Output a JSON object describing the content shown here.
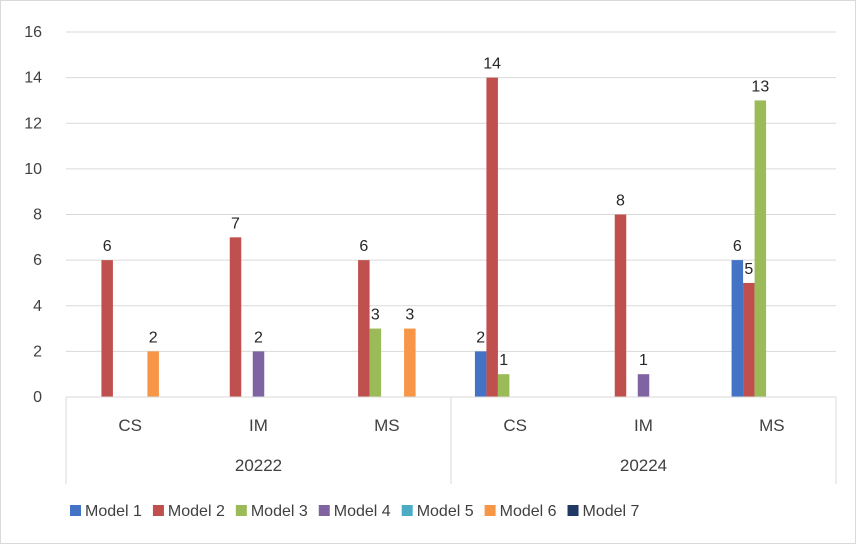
{
  "chart_data": {
    "type": "bar",
    "title": "",
    "xlabel": "",
    "ylabel": "",
    "ylim": [
      0,
      16
    ],
    "ytick_step": 2,
    "grid": true,
    "legend_position": "bottom",
    "groups": [
      {
        "label": "20222",
        "categories": [
          "CS",
          "IM",
          "MS"
        ]
      },
      {
        "label": "20224",
        "categories": [
          "CS",
          "IM",
          "MS"
        ]
      }
    ],
    "series": [
      {
        "name": "Model 1",
        "color": "#4472C4",
        "values": [
          0,
          0,
          0,
          2,
          0,
          6
        ]
      },
      {
        "name": "Model 2",
        "color": "#C0504D",
        "values": [
          6,
          7,
          6,
          14,
          8,
          5
        ]
      },
      {
        "name": "Model 3",
        "color": "#9BBB59",
        "values": [
          0,
          0,
          3,
          1,
          0,
          13
        ]
      },
      {
        "name": "Model 4",
        "color": "#8064A2",
        "values": [
          0,
          2,
          0,
          0,
          1,
          0
        ]
      },
      {
        "name": "Model 5",
        "color": "#4BACC6",
        "values": [
          0,
          0,
          0,
          0,
          0,
          0
        ]
      },
      {
        "name": "Model 6",
        "color": "#F79646",
        "values": [
          2,
          0,
          3,
          0,
          0,
          0
        ]
      },
      {
        "name": "Model 7",
        "color": "#1F3864",
        "values": [
          0,
          0,
          0,
          0,
          0,
          0
        ]
      }
    ]
  }
}
